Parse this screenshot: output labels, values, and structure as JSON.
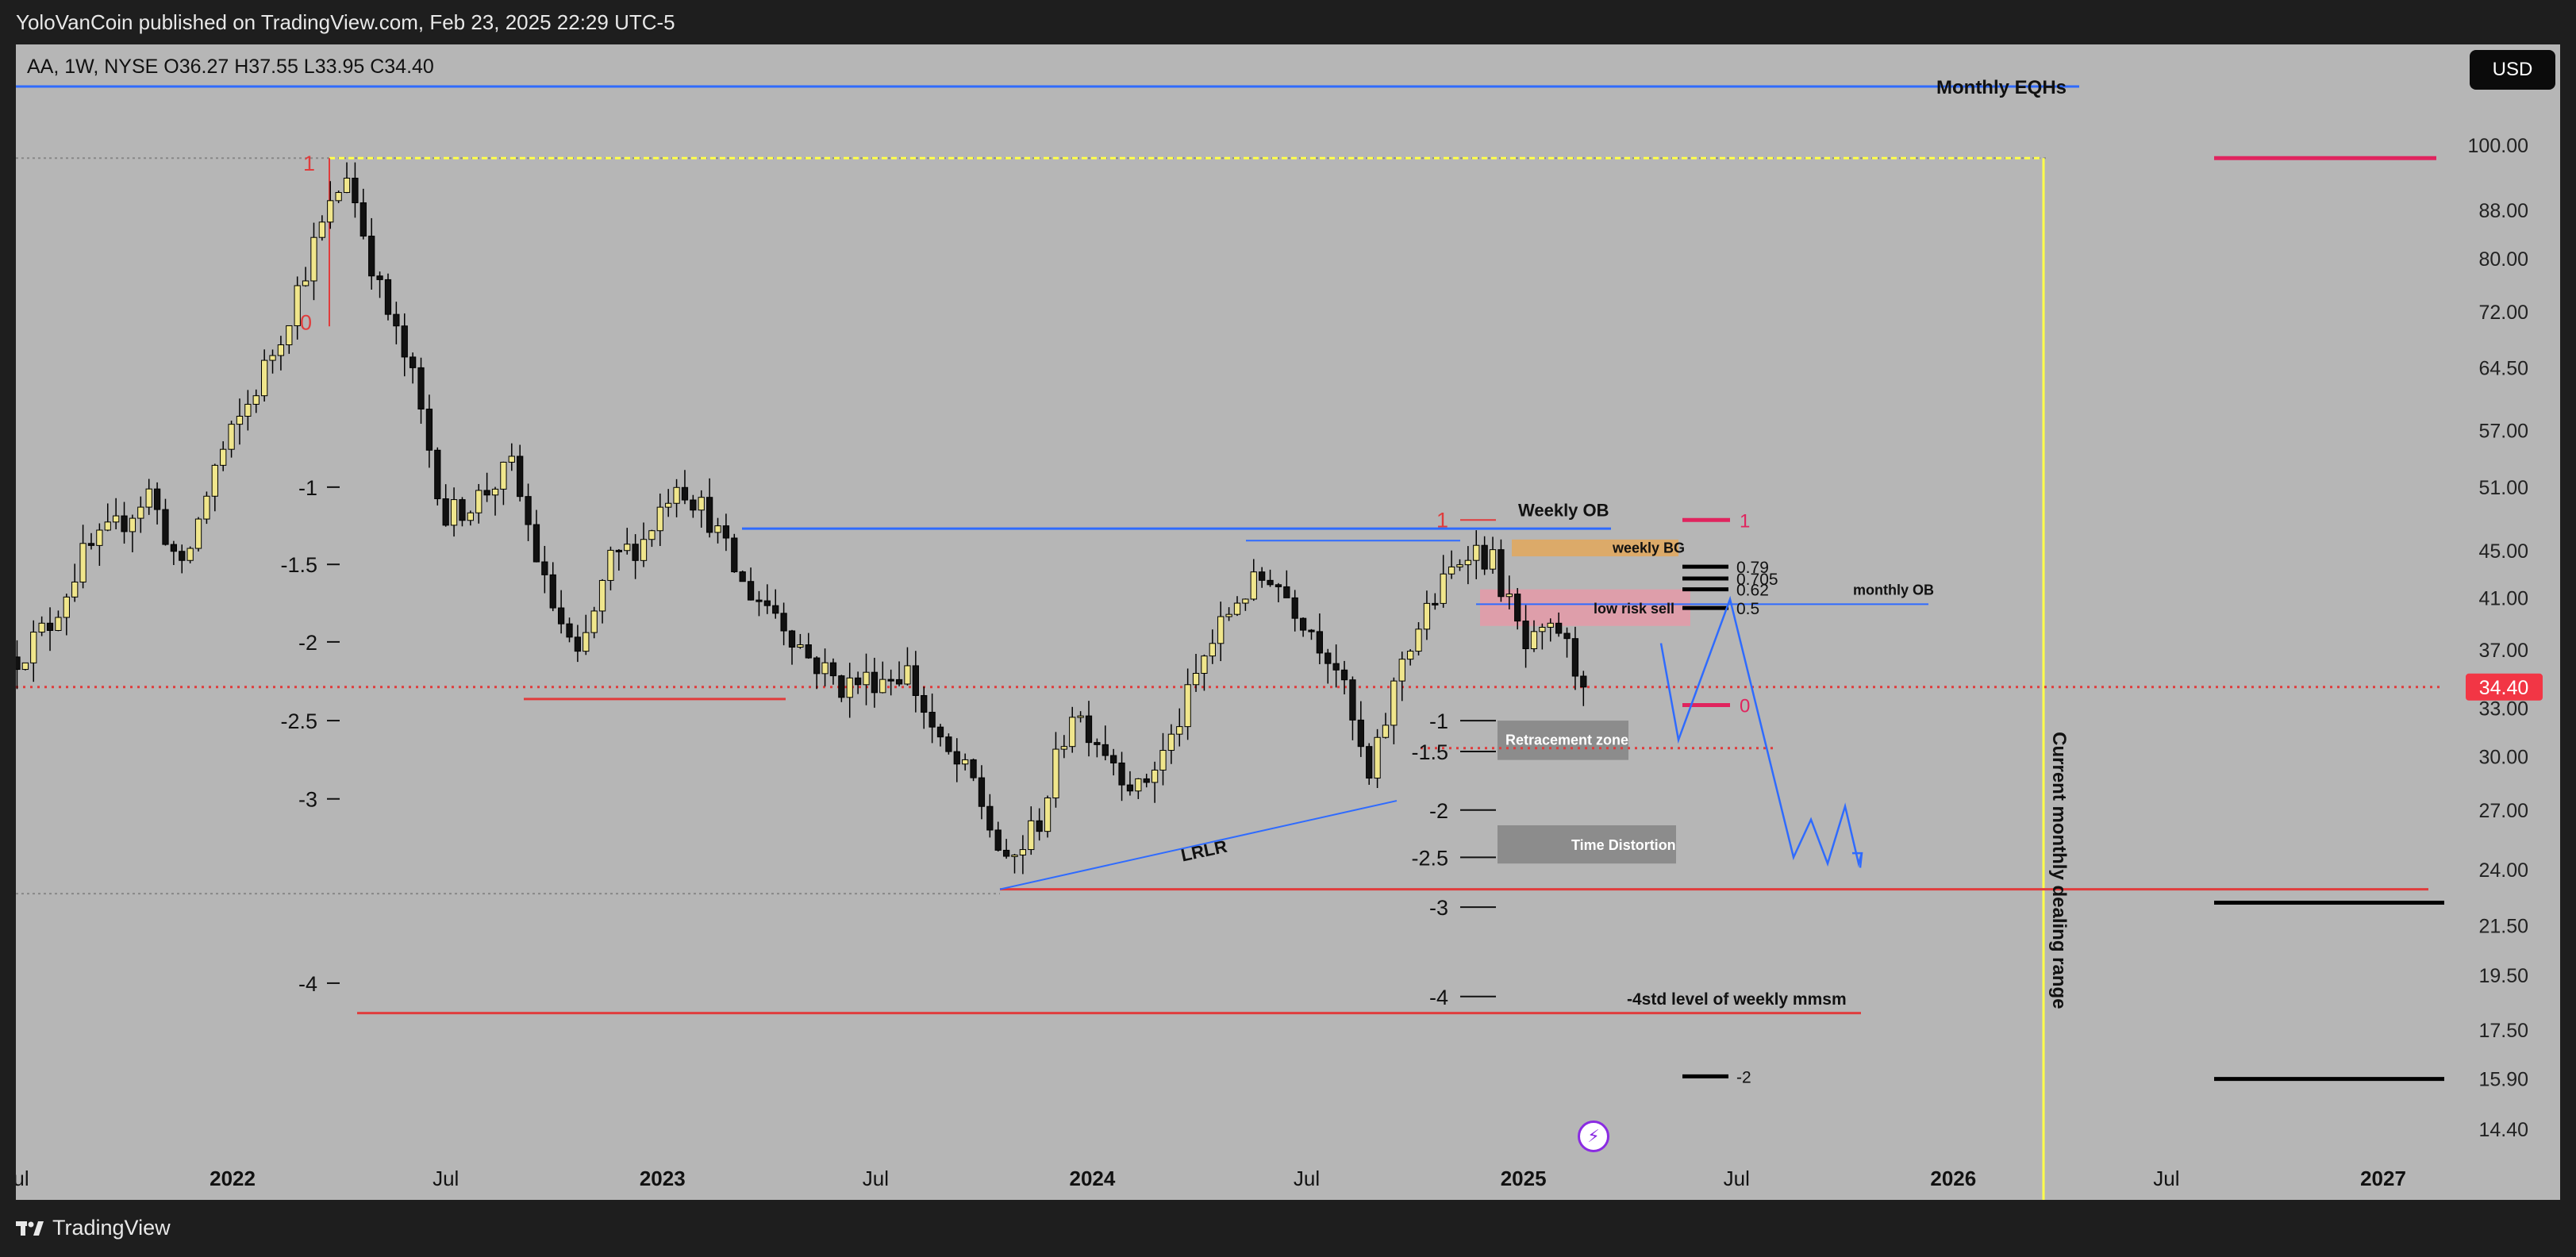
{
  "header": {
    "published": "YoloVanCoin published on TradingView.com, Feb 23, 2025 22:29 UTC-5"
  },
  "footer": {
    "brand": "TradingView",
    "logo_icon": "tradingview-logo-icon"
  },
  "toolbar": {
    "currency": "USD"
  },
  "legend": {
    "symbol_line": "AA, 1W, NYSE  O36.27  H37.55  L33.95  C34.40"
  },
  "colors": {
    "background": "#b6b6b6",
    "up": "#f0e68c",
    "down": "#111111",
    "blue": "#2f6bff",
    "red": "#e03c3c",
    "yellow": "#ffff4a",
    "pink": "#e0245e"
  },
  "chart_data": {
    "type": "candlestick",
    "scale": "log",
    "ylim": [
      13.8,
      120
    ],
    "xlim": [
      "2021-07-01",
      "2027-04-01"
    ],
    "price_ticks": [
      "100.00",
      "88.00",
      "80.00",
      "72.00",
      "64.50",
      "57.00",
      "51.00",
      "45.00",
      "41.00",
      "37.00",
      "33.00",
      "30.00",
      "27.00",
      "24.00",
      "21.50",
      "19.50",
      "17.50",
      "15.90",
      "14.40"
    ],
    "time_ticks": [
      {
        "label": "Jul",
        "date": "2021-07-01",
        "bold": false
      },
      {
        "label": "2022",
        "date": "2022-01-01",
        "bold": true
      },
      {
        "label": "Jul",
        "date": "2022-07-01",
        "bold": false
      },
      {
        "label": "2023",
        "date": "2023-01-01",
        "bold": true
      },
      {
        "label": "Jul",
        "date": "2023-07-01",
        "bold": false
      },
      {
        "label": "2024",
        "date": "2024-01-01",
        "bold": true
      },
      {
        "label": "Jul",
        "date": "2024-07-01",
        "bold": false
      },
      {
        "label": "2025",
        "date": "2025-01-01",
        "bold": true
      },
      {
        "label": "Jul",
        "date": "2025-07-01",
        "bold": false
      },
      {
        "label": "2026",
        "date": "2026-01-01",
        "bold": true
      },
      {
        "label": "Jul",
        "date": "2026-07-01",
        "bold": false
      },
      {
        "label": "2027",
        "date": "2027-01-01",
        "bold": true
      }
    ],
    "last_price": "34.40",
    "price_path": [
      [
        "2021-07-02",
        36.5
      ],
      [
        "2021-07-30",
        39.0
      ],
      [
        "2021-08-27",
        44.5
      ],
      [
        "2021-09-24",
        47.0
      ],
      [
        "2021-10-22",
        50.5
      ],
      [
        "2021-11-19",
        43.0
      ],
      [
        "2021-12-17",
        53.0
      ],
      [
        "2022-01-14",
        60.0
      ],
      [
        "2022-02-11",
        69.0
      ],
      [
        "2022-03-11",
        82.0
      ],
      [
        "2022-04-08",
        95.0
      ],
      [
        "2022-05-06",
        75.0
      ],
      [
        "2022-06-03",
        63.0
      ],
      [
        "2022-07-01",
        48.0
      ],
      [
        "2022-07-29",
        50.0
      ],
      [
        "2022-08-26",
        53.0
      ],
      [
        "2022-09-23",
        42.0
      ],
      [
        "2022-10-21",
        36.0
      ],
      [
        "2022-11-18",
        44.0
      ],
      [
        "2022-12-16",
        46.0
      ],
      [
        "2023-01-13",
        52.0
      ],
      [
        "2023-02-10",
        48.0
      ],
      [
        "2023-03-10",
        42.0
      ],
      [
        "2023-04-07",
        40.0
      ],
      [
        "2023-05-05",
        36.5
      ],
      [
        "2023-06-02",
        34.5
      ],
      [
        "2023-06-30",
        35.0
      ],
      [
        "2023-07-28",
        35.5
      ],
      [
        "2023-08-25",
        30.5
      ],
      [
        "2023-09-22",
        28.5
      ],
      [
        "2023-10-20",
        24.0
      ],
      [
        "2023-11-17",
        26.5
      ],
      [
        "2023-12-15",
        33.0
      ],
      [
        "2024-01-12",
        30.5
      ],
      [
        "2024-02-09",
        28.0
      ],
      [
        "2024-03-08",
        31.0
      ],
      [
        "2024-04-05",
        36.5
      ],
      [
        "2024-05-03",
        41.0
      ],
      [
        "2024-05-31",
        43.0
      ],
      [
        "2024-06-28",
        39.5
      ],
      [
        "2024-07-26",
        36.0
      ],
      [
        "2024-08-23",
        28.5
      ],
      [
        "2024-09-20",
        36.5
      ],
      [
        "2024-10-18",
        41.0
      ],
      [
        "2024-11-15",
        45.5
      ],
      [
        "2024-12-06",
        44.0
      ],
      [
        "2025-01-03",
        37.0
      ],
      [
        "2025-01-31",
        38.5
      ],
      [
        "2025-02-21",
        34.4
      ]
    ],
    "annotations": [
      {
        "text": "Monthly EQHs",
        "type": "label"
      },
      {
        "text": "Weekly OB",
        "type": "label"
      },
      {
        "text": "weekly BG",
        "type": "zone"
      },
      {
        "text": "low risk sell",
        "type": "zone"
      },
      {
        "text": "monthly OB",
        "type": "label"
      },
      {
        "text": "Retracement zone",
        "type": "zone"
      },
      {
        "text": "Time Distortion",
        "type": "zone"
      },
      {
        "text": "LRLR",
        "type": "label"
      },
      {
        "text": "-4std level of weekly mmsm",
        "type": "label"
      },
      {
        "text": "Current monthly dealing range",
        "type": "label"
      }
    ],
    "fib_levels": [
      "0.79",
      "0.705",
      "0.62",
      "0.5"
    ],
    "std_labels_left": [
      "1",
      "0",
      "-1",
      "-1.5",
      "-2",
      "-2.5",
      "-3",
      "-4"
    ],
    "std_labels_right": [
      "1",
      "-1",
      "-1.5",
      "-2",
      "-2.5",
      "-3",
      "-4"
    ],
    "pink_labels": [
      "1",
      "0"
    ],
    "minus_two_label": "-2"
  },
  "texts": {
    "monthly_eqhs": "Monthly EQHs",
    "weekly_ob": "Weekly OB",
    "weekly_bg": "weekly BG",
    "low_risk_sell": "low risk sell",
    "monthly_ob": "monthly OB",
    "retracement": "Retracement zone",
    "time_distortion": "Time Distortion",
    "lrlr": "LRLR",
    "minus4std": "-4std level of weekly mmsm",
    "dealing_range": "Current monthly dealing range"
  }
}
